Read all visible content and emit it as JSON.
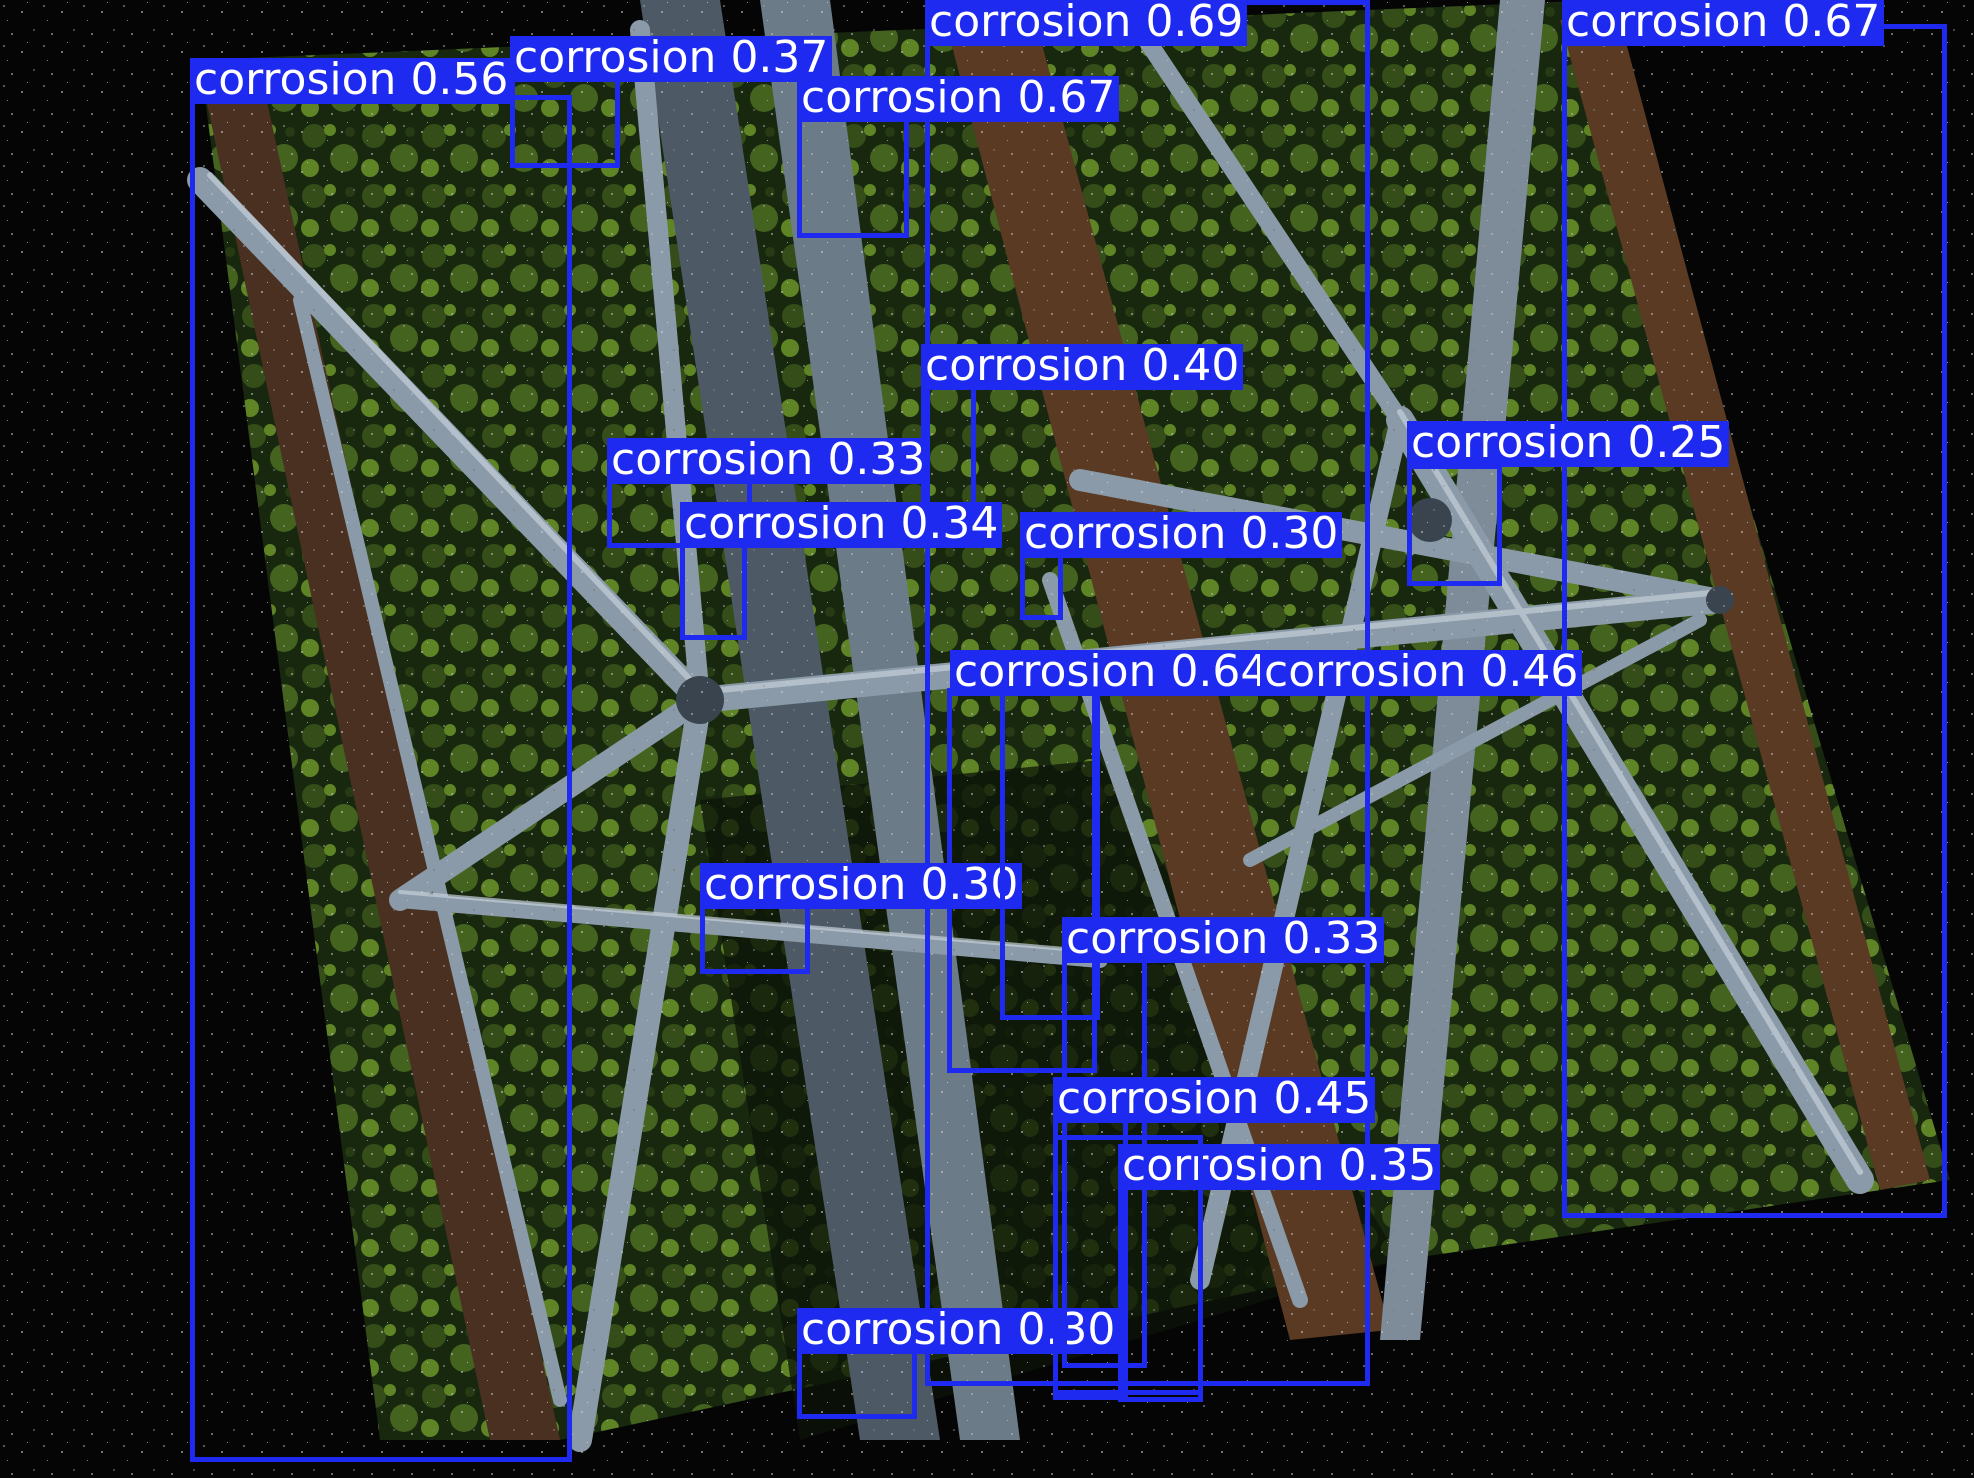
{
  "image": {
    "subject": "transmission-tower-steel-lattice",
    "colors": {
      "background": "#050505",
      "foliage_dark": "#1a2e0f",
      "foliage_light": "#6e9a2c",
      "steel": "#8a9aa8",
      "steel_dark": "#4d5a66",
      "rust": "#5a3a22",
      "box": "#1f2af0",
      "label_text": "#ffffff"
    }
  },
  "detections": [
    {
      "label": "corrosion",
      "score": "0.56"
    },
    {
      "label": "corrosion",
      "score": "0.37"
    },
    {
      "label": "corrosion",
      "score": "0.69"
    },
    {
      "label": "corrosion",
      "score": "0.67"
    },
    {
      "label": "corrosion",
      "score": "0.67"
    },
    {
      "label": "corrosion",
      "score": "0.40"
    },
    {
      "label": "corrosion",
      "score": "0.33"
    },
    {
      "label": "corrosion",
      "score": "0.34"
    },
    {
      "label": "corrosion",
      "score": "0.30"
    },
    {
      "label": "corrosion",
      "score": "0.30"
    },
    {
      "label": "corrosion",
      "score": "0.25"
    },
    {
      "label": "corrosion",
      "score": "0.64"
    },
    {
      "label": "corrosion",
      "score": "0.46"
    },
    {
      "label": "corrosion",
      "score": "0.30"
    },
    {
      "label": "corrosion",
      "score": "0.33"
    },
    {
      "label": "corrosion",
      "score": "0.45"
    },
    {
      "label": "corrosion",
      "score": "0.35"
    },
    {
      "label": "corrosion",
      "score": "0.30"
    }
  ]
}
